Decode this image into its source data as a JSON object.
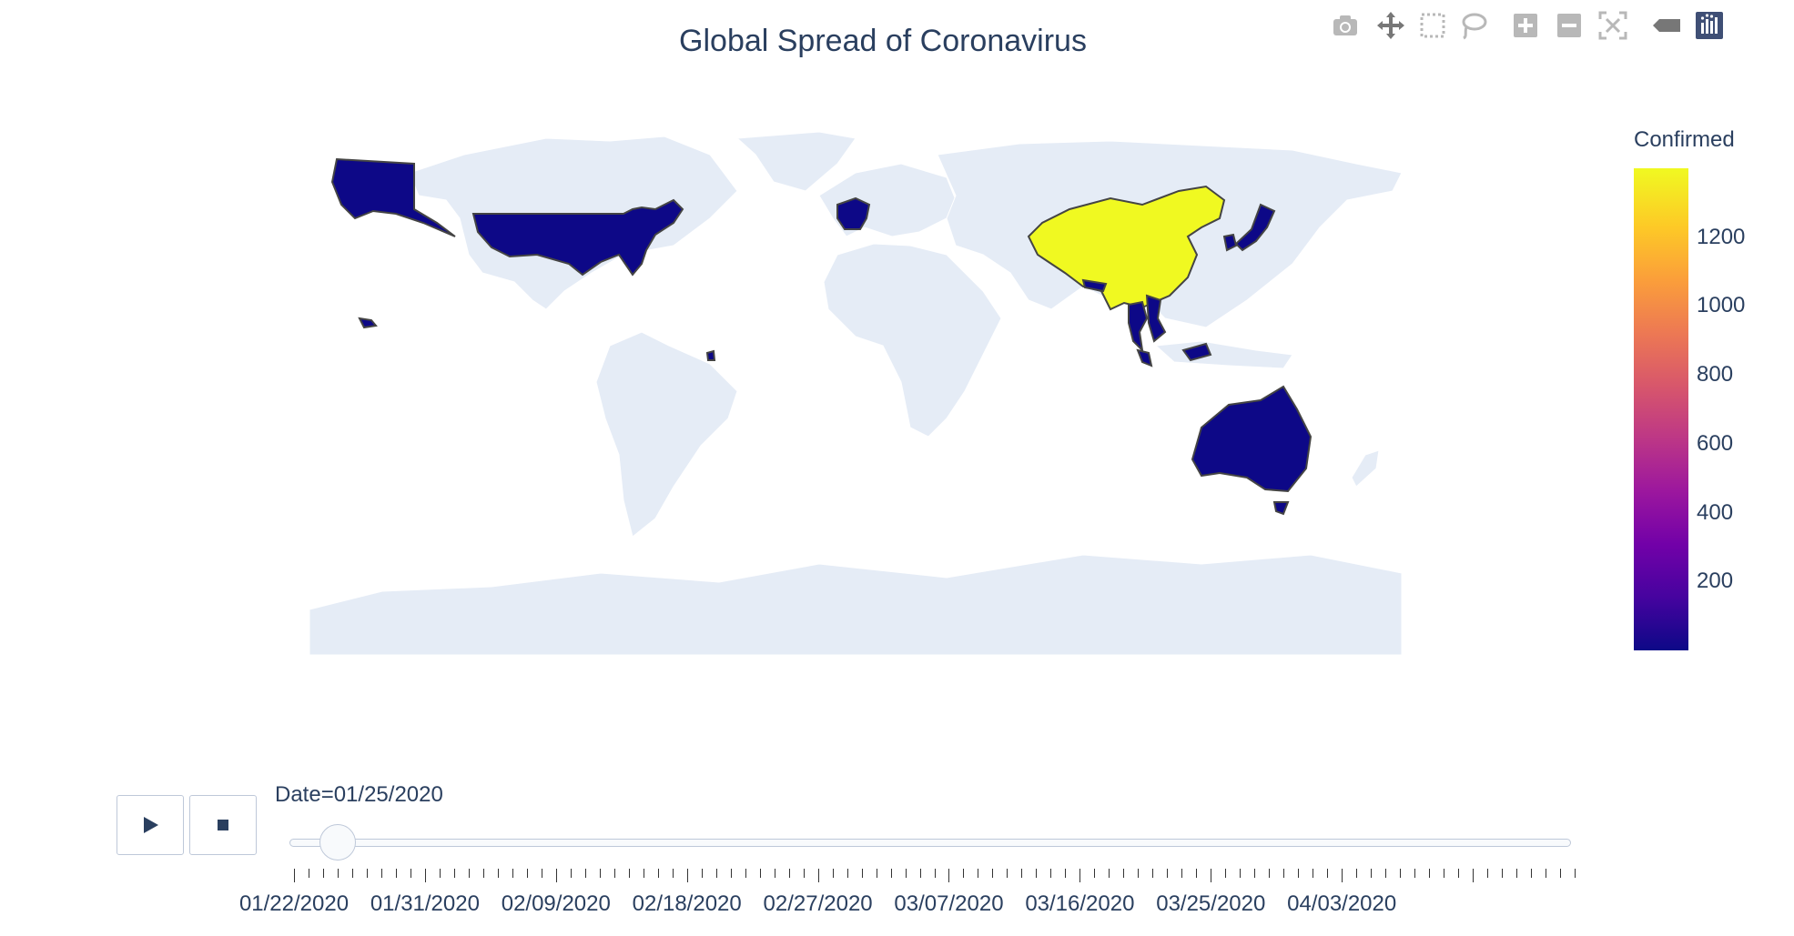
{
  "title": "Global Spread of Coronavirus",
  "colorbar": {
    "title": "Confirmed",
    "range": [
      0,
      1400
    ],
    "ticks": [
      "200",
      "400",
      "600",
      "800",
      "1000",
      "1200"
    ],
    "colorscale": [
      "#0d0887",
      "#46039f",
      "#7201a8",
      "#9c179e",
      "#bd3786",
      "#d8576b",
      "#ed7953",
      "#fb9f3a",
      "#fdca26",
      "#f0f921"
    ]
  },
  "map": {
    "land_color": "#e5ecf6",
    "border_color": "#444444",
    "countries": [
      {
        "name": "China",
        "confirmed": 1400
      },
      {
        "name": "United States",
        "confirmed": 2
      },
      {
        "name": "France",
        "confirmed": 3
      },
      {
        "name": "Japan",
        "confirmed": 2
      },
      {
        "name": "South Korea",
        "confirmed": 2
      },
      {
        "name": "Thailand",
        "confirmed": 7
      },
      {
        "name": "Vietnam",
        "confirmed": 2
      },
      {
        "name": "Malaysia",
        "confirmed": 3
      },
      {
        "name": "Singapore",
        "confirmed": 3
      },
      {
        "name": "Nepal",
        "confirmed": 1
      },
      {
        "name": "Australia",
        "confirmed": 4
      }
    ]
  },
  "slider": {
    "current_label": "Date=01/25/2020",
    "current_index": 3,
    "tick_labels": [
      "01/22/2020",
      "01/31/2020",
      "02/09/2020",
      "02/18/2020",
      "02/27/2020",
      "03/07/2020",
      "03/16/2020",
      "03/25/2020",
      "04/03/2020"
    ],
    "total_steps": 89
  },
  "controls": {
    "play_icon": "play-icon",
    "stop_icon": "stop-icon"
  },
  "modebar": {
    "icons": [
      "camera-icon",
      "pan-icon",
      "box-select-icon",
      "lasso-icon",
      "zoom-in-icon",
      "zoom-out-icon",
      "reset-icon",
      "hover-icon",
      "plotly-logo-icon"
    ]
  }
}
